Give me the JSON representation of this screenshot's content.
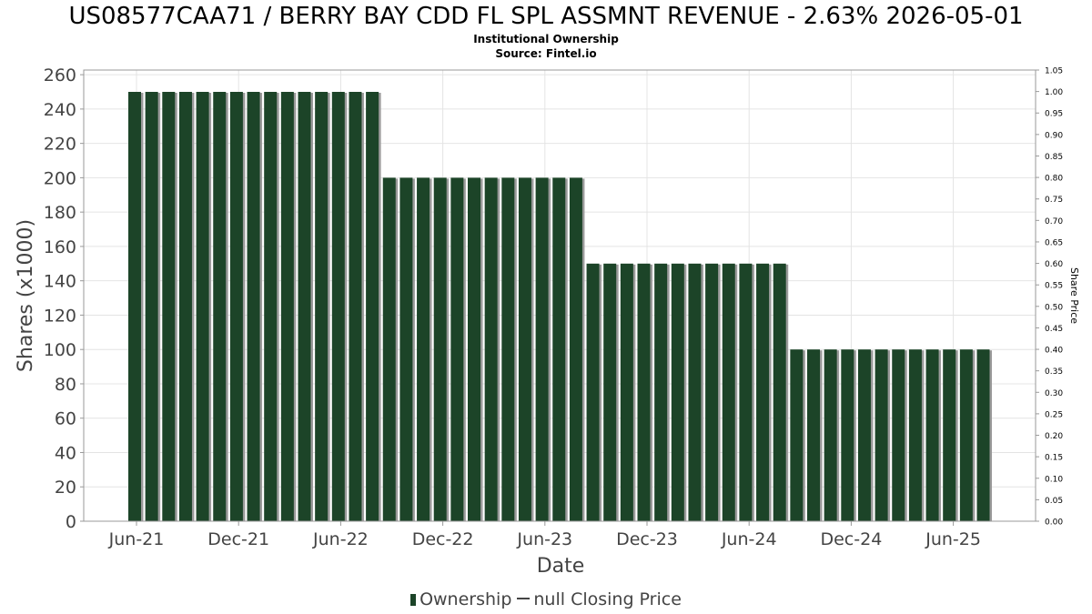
{
  "chart_data": {
    "type": "bar",
    "title": "US08577CAA71 / BERRY BAY CDD FL SPL ASSMNT REVENUE - 2.63% 2026-05-01",
    "subtitle": "Institutional Ownership",
    "source": "Source: Fintel.io",
    "xlabel": "Date",
    "ylabel": "Shares (x1000)",
    "y2label": "Share Price",
    "ylim": [
      0,
      260
    ],
    "y2lim": [
      0,
      1.05
    ],
    "yticks": [
      0,
      20,
      40,
      60,
      80,
      100,
      120,
      140,
      160,
      180,
      200,
      220,
      240,
      260
    ],
    "y2ticks": [
      "0.00",
      "0.05",
      "0.10",
      "0.15",
      "0.20",
      "0.25",
      "0.30",
      "0.35",
      "0.40",
      "0.45",
      "0.50",
      "0.55",
      "0.60",
      "0.65",
      "0.70",
      "0.75",
      "0.80",
      "0.85",
      "0.90",
      "0.95",
      "1.00",
      "1.05"
    ],
    "xticks": [
      "Jun-21",
      "Dec-21",
      "Jun-22",
      "Dec-22",
      "Jun-23",
      "Dec-23",
      "Jun-24",
      "Dec-24",
      "Jun-25"
    ],
    "grid": true,
    "legend_position": "bottom",
    "series": [
      {
        "name": "Ownership",
        "color": "#1c4428",
        "values": [
          250,
          250,
          250,
          250,
          250,
          250,
          250,
          250,
          250,
          250,
          250,
          250,
          250,
          250,
          250,
          200,
          200,
          200,
          200,
          200,
          200,
          200,
          200,
          200,
          200,
          200,
          200,
          150,
          150,
          150,
          150,
          150,
          150,
          150,
          150,
          150,
          150,
          150,
          150,
          100,
          100,
          100,
          100,
          100,
          100,
          100,
          100,
          100,
          100,
          100,
          100
        ]
      }
    ],
    "legend": {
      "ownership_label": "Ownership",
      "price_label": "null Closing Price"
    }
  }
}
